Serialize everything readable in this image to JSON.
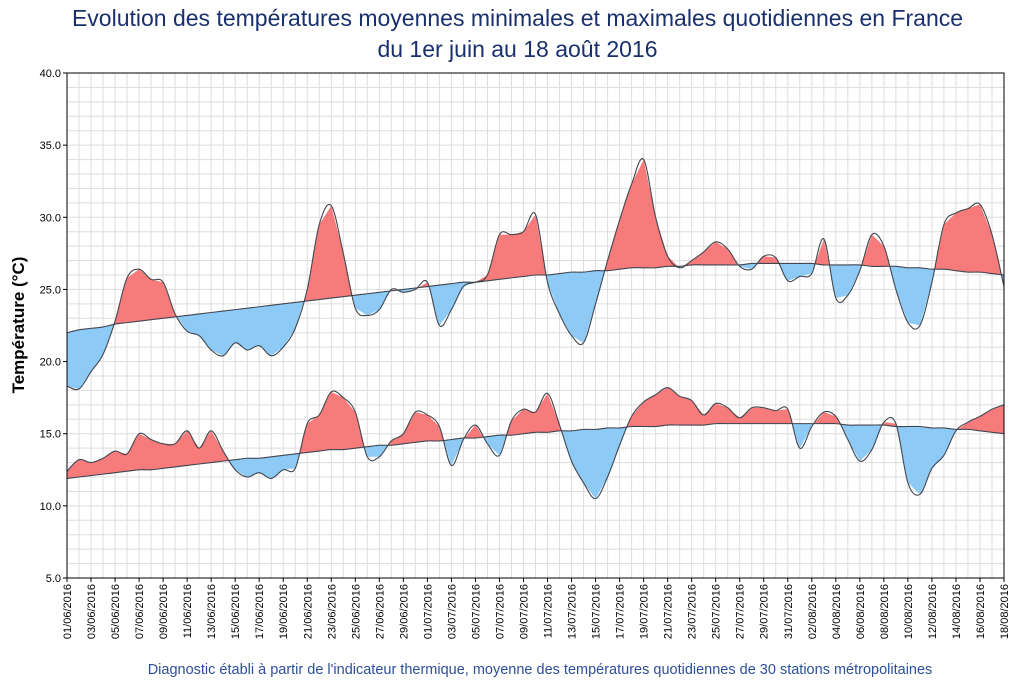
{
  "chart_data": {
    "type": "area",
    "title": "Evolution des températures moyennes minimales et maximales quotidiennes en France",
    "subtitle": "du 1er juin au 18 août 2016",
    "ylabel": "Température (°C)",
    "ylim": [
      5,
      40
    ],
    "yticks": [
      "5.0",
      "10.0",
      "15.0",
      "20.0",
      "25.0",
      "30.0",
      "35.0",
      "40.0"
    ],
    "grid": true,
    "x_dates": [
      "01/06/2016",
      "02/06/2016",
      "03/06/2016",
      "04/06/2016",
      "05/06/2016",
      "06/06/2016",
      "07/06/2016",
      "08/06/2016",
      "09/06/2016",
      "10/06/2016",
      "11/06/2016",
      "12/06/2016",
      "13/06/2016",
      "14/06/2016",
      "15/06/2016",
      "16/06/2016",
      "17/06/2016",
      "18/06/2016",
      "19/06/2016",
      "20/06/2016",
      "21/06/2016",
      "22/06/2016",
      "23/06/2016",
      "24/06/2016",
      "25/06/2016",
      "26/06/2016",
      "27/06/2016",
      "28/06/2016",
      "29/06/2016",
      "30/06/2016",
      "01/07/2016",
      "02/07/2016",
      "03/07/2016",
      "04/07/2016",
      "05/07/2016",
      "06/07/2016",
      "07/07/2016",
      "08/07/2016",
      "09/07/2016",
      "10/07/2016",
      "11/07/2016",
      "12/07/2016",
      "13/07/2016",
      "14/07/2016",
      "15/07/2016",
      "16/07/2016",
      "17/07/2016",
      "18/07/2016",
      "19/07/2016",
      "20/07/2016",
      "21/07/2016",
      "22/07/2016",
      "23/07/2016",
      "24/07/2016",
      "25/07/2016",
      "26/07/2016",
      "27/07/2016",
      "28/07/2016",
      "29/07/2016",
      "30/07/2016",
      "31/07/2016",
      "01/08/2016",
      "02/08/2016",
      "03/08/2016",
      "04/08/2016",
      "05/08/2016",
      "06/08/2016",
      "07/08/2016",
      "08/08/2016",
      "09/08/2016",
      "10/08/2016",
      "11/08/2016",
      "12/08/2016",
      "13/08/2016",
      "14/08/2016",
      "15/08/2016",
      "16/08/2016",
      "17/08/2016",
      "18/08/2016"
    ],
    "x_tick_labels": [
      "01/06/2016",
      "03/06/2016",
      "05/06/2016",
      "07/06/2016",
      "09/06/2016",
      "11/06/2016",
      "13/06/2016",
      "15/06/2016",
      "17/06/2016",
      "19/06/2016",
      "21/06/2016",
      "23/06/2016",
      "25/06/2016",
      "27/06/2016",
      "29/06/2016",
      "01/07/2016",
      "03/07/2016",
      "05/07/2016",
      "07/07/2016",
      "09/07/2016",
      "11/07/2016",
      "13/07/2016",
      "15/07/2016",
      "17/07/2016",
      "19/07/2016",
      "21/07/2016",
      "23/07/2016",
      "25/07/2016",
      "27/07/2016",
      "29/07/2016",
      "31/07/2016",
      "02/08/2016",
      "04/08/2016",
      "06/08/2016",
      "08/08/2016",
      "10/08/2016",
      "12/08/2016",
      "14/08/2016",
      "16/08/2016",
      "18/08/2016"
    ],
    "series": [
      {
        "key": "tmax",
        "values": [
          18.3,
          18.1,
          19.3,
          20.5,
          22.8,
          25.8,
          26.4,
          25.7,
          25.5,
          23.3,
          22.1,
          21.8,
          20.8,
          20.4,
          21.3,
          20.8,
          21.1,
          20.4,
          21.0,
          22.3,
          25.0,
          29.5,
          30.8,
          27.5,
          23.7,
          23.2,
          23.6,
          25.0,
          24.8,
          25.0,
          25.5,
          22.5,
          23.6,
          25.2,
          25.5,
          26.0,
          28.8,
          28.8,
          29.0,
          30.2,
          25.5,
          23.3,
          21.8,
          21.3,
          24.0,
          27.0,
          29.8,
          32.3,
          34.0,
          30.0,
          27.3,
          26.5,
          27.0,
          27.6,
          28.3,
          27.8,
          26.6,
          26.4,
          27.3,
          27.2,
          25.6,
          25.9,
          26.1,
          28.5,
          24.4,
          24.6,
          26.3,
          28.8,
          28.0,
          25.0,
          22.7,
          22.5,
          25.5,
          29.5,
          30.3,
          30.6,
          30.9,
          28.8,
          25.2
        ]
      },
      {
        "key": "tmin",
        "values": [
          12.4,
          13.2,
          13.0,
          13.3,
          13.8,
          13.6,
          15.0,
          14.6,
          14.3,
          14.3,
          15.2,
          14.0,
          15.2,
          13.8,
          12.5,
          12.0,
          12.3,
          11.9,
          12.5,
          12.6,
          15.7,
          16.3,
          17.9,
          17.5,
          16.5,
          13.4,
          13.4,
          14.5,
          15.0,
          16.5,
          16.3,
          15.5,
          12.8,
          14.6,
          15.6,
          14.3,
          13.5,
          15.9,
          16.7,
          16.5,
          17.8,
          15.6,
          13.1,
          11.6,
          10.5,
          12.0,
          14.2,
          16.2,
          17.2,
          17.7,
          18.2,
          17.6,
          17.3,
          16.3,
          17.1,
          16.8,
          16.1,
          16.8,
          16.8,
          16.6,
          16.7,
          14.0,
          15.5,
          16.5,
          16.2,
          14.6,
          13.1,
          13.9,
          15.8,
          15.7,
          11.6,
          10.8,
          12.6,
          13.5,
          15.2,
          15.8,
          16.2,
          16.7,
          17.0
        ]
      },
      {
        "key": "tmax_normal",
        "values": [
          22.0,
          22.2,
          22.3,
          22.4,
          22.6,
          22.7,
          22.8,
          22.9,
          23.0,
          23.1,
          23.2,
          23.3,
          23.4,
          23.5,
          23.6,
          23.7,
          23.8,
          23.9,
          24.0,
          24.1,
          24.2,
          24.3,
          24.4,
          24.5,
          24.6,
          24.7,
          24.8,
          24.9,
          25.0,
          25.1,
          25.2,
          25.3,
          25.4,
          25.5,
          25.5,
          25.6,
          25.7,
          25.8,
          25.9,
          26.0,
          26.0,
          26.1,
          26.2,
          26.2,
          26.3,
          26.3,
          26.4,
          26.5,
          26.5,
          26.5,
          26.6,
          26.6,
          26.7,
          26.7,
          26.7,
          26.7,
          26.7,
          26.8,
          26.8,
          26.8,
          26.8,
          26.8,
          26.8,
          26.7,
          26.7,
          26.7,
          26.7,
          26.6,
          26.6,
          26.6,
          26.5,
          26.5,
          26.4,
          26.4,
          26.3,
          26.2,
          26.2,
          26.1,
          26.0
        ]
      },
      {
        "key": "tmin_normal",
        "values": [
          11.9,
          12.0,
          12.1,
          12.2,
          12.3,
          12.4,
          12.5,
          12.5,
          12.6,
          12.7,
          12.8,
          12.9,
          13.0,
          13.1,
          13.2,
          13.3,
          13.3,
          13.4,
          13.5,
          13.6,
          13.7,
          13.8,
          13.9,
          13.9,
          14.0,
          14.1,
          14.2,
          14.2,
          14.3,
          14.4,
          14.5,
          14.5,
          14.6,
          14.7,
          14.7,
          14.8,
          14.9,
          14.9,
          15.0,
          15.1,
          15.1,
          15.2,
          15.2,
          15.3,
          15.3,
          15.4,
          15.4,
          15.5,
          15.5,
          15.5,
          15.6,
          15.6,
          15.6,
          15.6,
          15.7,
          15.7,
          15.7,
          15.7,
          15.7,
          15.7,
          15.7,
          15.7,
          15.7,
          15.7,
          15.7,
          15.6,
          15.6,
          15.6,
          15.6,
          15.5,
          15.5,
          15.5,
          15.4,
          15.4,
          15.3,
          15.3,
          15.2,
          15.1,
          15.0
        ]
      }
    ],
    "colors": {
      "above_normal": "#f77b7b",
      "below_normal": "#8dcaf5",
      "curve": "#404650",
      "grid": "#dddddd",
      "title": "#1a2f6e",
      "caption": "#2e4f9a"
    }
  },
  "caption": "Diagnostic établi à partir de l'indicateur thermique, moyenne des températures quotidiennes de 30 stations métropolitaines"
}
